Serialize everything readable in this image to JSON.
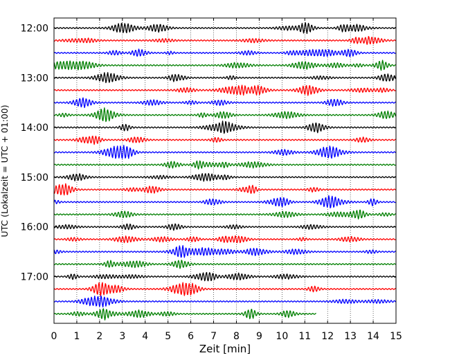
{
  "chart_data": {
    "type": "line",
    "title": "",
    "xlabel": "Zeit  [min]",
    "ylabel": "UTC (Lokalzeit = UTC + 01:00)",
    "xlim": [
      0,
      15
    ],
    "x_ticks": [
      "0",
      "1",
      "2",
      "3",
      "4",
      "5",
      "6",
      "7",
      "8",
      "9",
      "10",
      "11",
      "12",
      "13",
      "14",
      "15"
    ],
    "y_ticks": [
      "12:00",
      "13:00",
      "14:00",
      "15:00",
      "16:00",
      "17:00"
    ],
    "trace_start": "12:00",
    "trace_interval_min": 15,
    "trace_count": 24,
    "last_trace_end_min": 11.5,
    "trace_colors": [
      "#000000",
      "#ff0000",
      "#0000ff",
      "#007f00"
    ],
    "grid": true
  }
}
